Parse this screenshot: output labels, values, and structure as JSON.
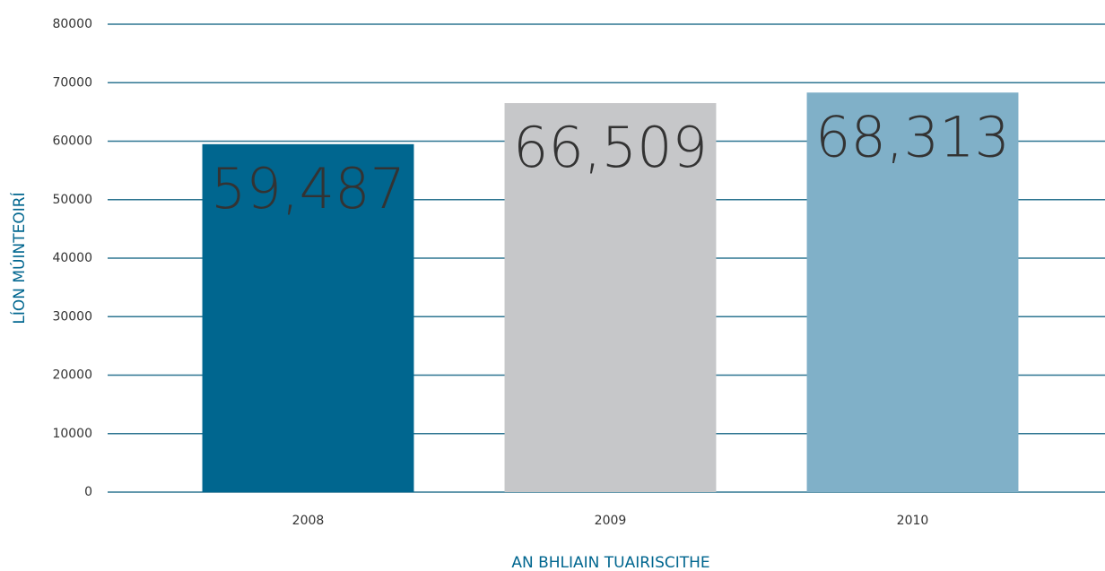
{
  "chart_data": {
    "type": "bar",
    "categories": [
      "2008",
      "2009",
      "2010"
    ],
    "values": [
      59487,
      66509,
      68313
    ],
    "value_labels": [
      "59,487",
      "66,509",
      "68,313"
    ],
    "colors": [
      "#00668f",
      "#c6c7c9",
      "#80b0c8"
    ],
    "label_colors": [
      "#ffffff",
      "#00668f",
      "#ffffff"
    ],
    "ylim": [
      0,
      80000
    ],
    "yticks": [
      0,
      10000,
      20000,
      30000,
      40000,
      50000,
      60000,
      70000,
      80000
    ],
    "grid": true,
    "x_label": "AN BHLIAIN TUAIRISCITHE",
    "y_label": "LÍON MÚINTEOIRÍ"
  }
}
